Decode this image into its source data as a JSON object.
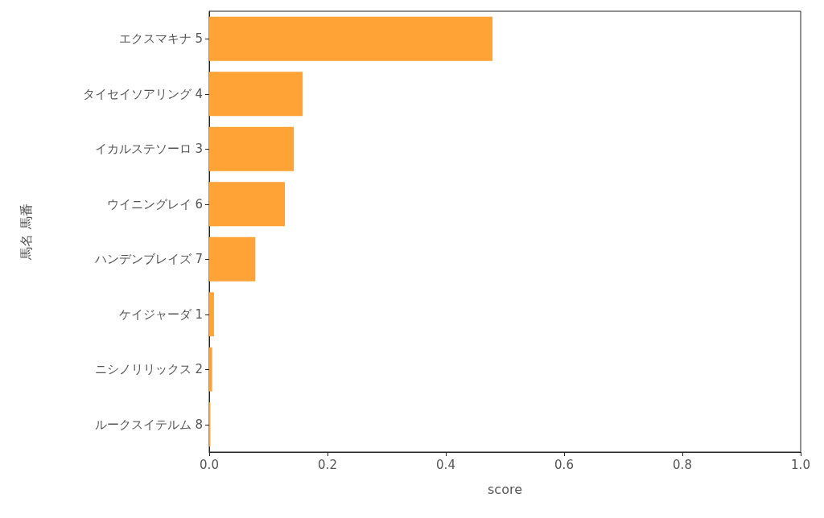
{
  "chart_data": {
    "type": "bar",
    "orientation": "horizontal",
    "xlabel": "score",
    "ylabel": "馬名 馬番",
    "categories": [
      "エクスマキナ 5",
      "タイセイソアリング 4",
      "イカルステソーロ 3",
      "ウイニングレイ 6",
      "ハンデンブレイズ 7",
      "ケイジャーダ 1",
      "ニシノリリックス 2",
      "ルークスイテルム 8"
    ],
    "values": [
      0.479,
      0.158,
      0.143,
      0.128,
      0.078,
      0.008,
      0.005,
      0.002
    ],
    "color": "#ffa336",
    "xlim": [
      0,
      1
    ],
    "xticks": [
      {
        "value": 0,
        "label": "0.0"
      },
      0.2,
      0.4,
      0.6,
      0.8,
      {
        "value": 1,
        "label": "1.0"
      }
    ],
    "grid": false
  }
}
